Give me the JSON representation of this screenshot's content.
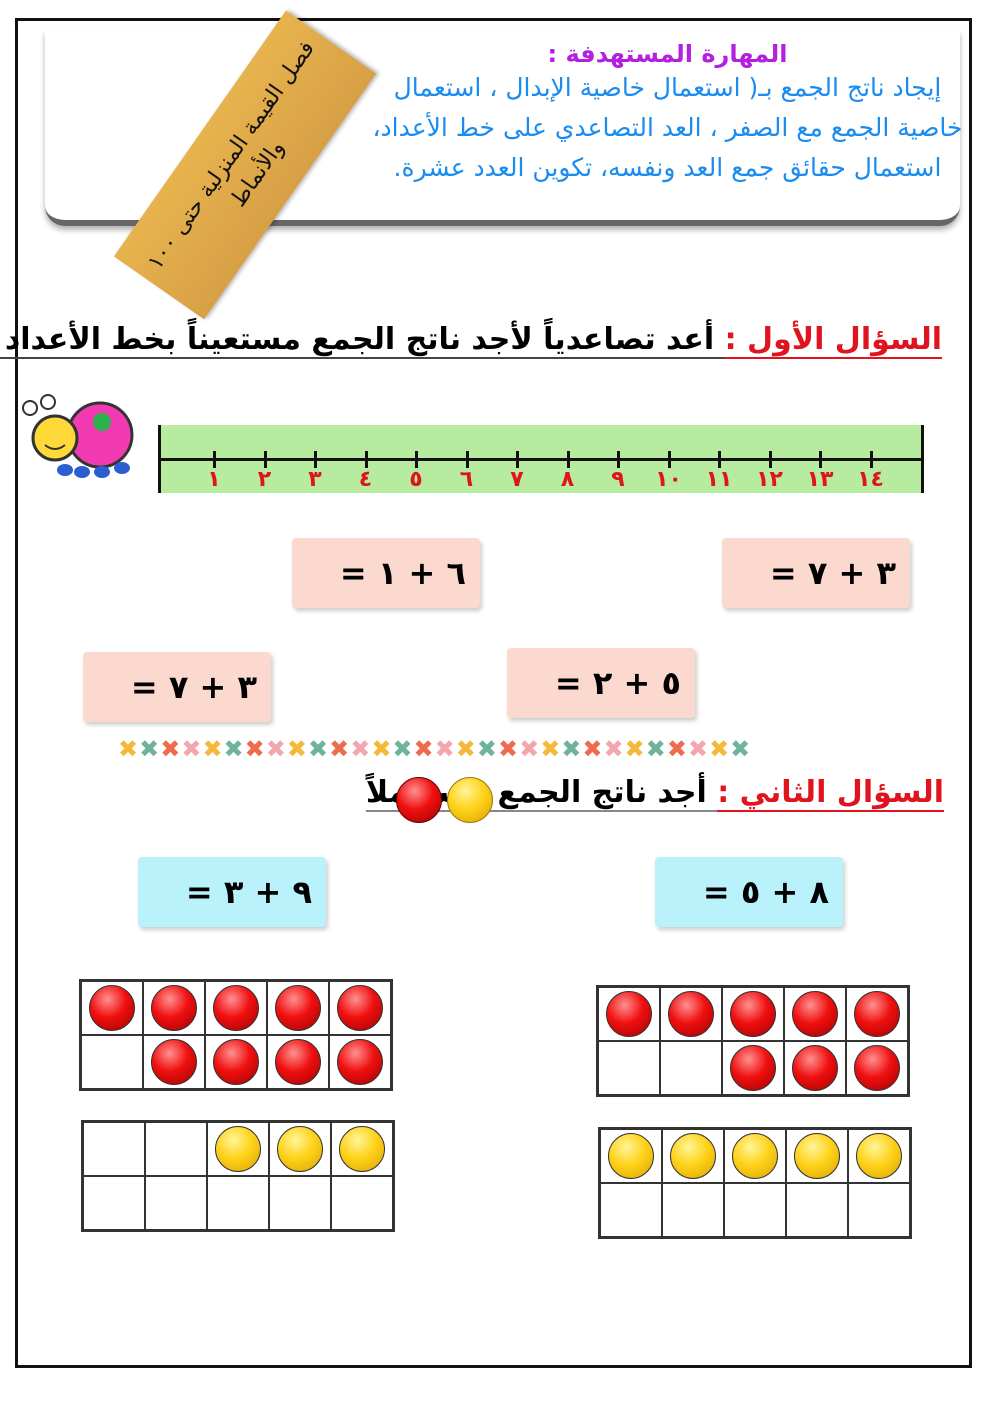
{
  "ribbon": {
    "text": "فصل القيمة المنزلية حتى ١٠٠ والأنماط"
  },
  "skill": {
    "title": "المهارة المستهدفة :",
    "lines": [
      "إيجاد ناتج الجمع بـ( استعمال خاصية الإبدال ، استعمال",
      "خاصية الجمع مع الصفر ، العد التصاعدي على خط الأعداد،",
      "استعمال حقائق جمع العد ونفسه، تكوين العدد عشرة."
    ]
  },
  "q1": {
    "label": "السؤال الأول :",
    "text": "أعد تصاعدياً لأجد ناتج الجمع مستعيناً بخط الأعداد :"
  },
  "number_line": {
    "labels": [
      "١",
      "٢",
      "٣",
      "٤",
      "٥",
      "٦",
      "٧",
      "٨",
      "٩",
      "١٠",
      "١١",
      "١٢",
      "١٣",
      "١٤"
    ]
  },
  "q1_equations": [
    "٣ + ٧ =",
    "٦ + ١ =",
    "٥ + ٢ =",
    "٣ + ٧ ="
  ],
  "divider_colors": [
    "#f5b93a",
    "#6fb39a",
    "#ee6b4d",
    "#f3a6ae"
  ],
  "q2": {
    "label": "السؤال الثاني :",
    "text": "أجد ناتج الجمع مستعملاً"
  },
  "q2_equations": [
    "٨ + ٥ =",
    "٩ + ٣ ="
  ],
  "ten_frames": {
    "right": {
      "red": 8,
      "yellow": 5
    },
    "left": {
      "red": 9,
      "yellow": 3
    }
  }
}
